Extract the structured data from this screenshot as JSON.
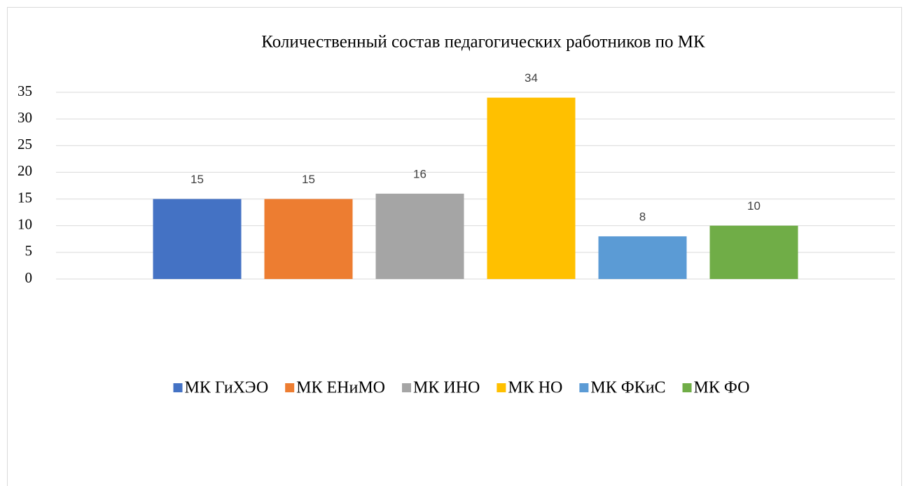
{
  "chart_data": {
    "type": "bar",
    "title": "Количественный состав педагогических работников по МК",
    "categories": [
      null
    ],
    "series": [
      {
        "name": "МК ГиХЭО",
        "color": "#4472c4",
        "values": [
          15
        ]
      },
      {
        "name": "МК ЕНиМО",
        "color": "#ed7d31",
        "values": [
          15
        ]
      },
      {
        "name": "МК ИНО",
        "color": "#a5a5a5",
        "values": [
          16
        ]
      },
      {
        "name": "МК НО",
        "color": "#ffc000",
        "values": [
          34
        ]
      },
      {
        "name": "МК ФКиС",
        "color": "#5b9bd5",
        "values": [
          8
        ]
      },
      {
        "name": "МК ФО",
        "color": "#70ad47",
        "values": [
          10
        ]
      }
    ],
    "ylim": [
      0,
      35
    ],
    "yticks": [
      0,
      5,
      10,
      15,
      20,
      25,
      30,
      35
    ],
    "grid": true,
    "legend": "bottom"
  }
}
